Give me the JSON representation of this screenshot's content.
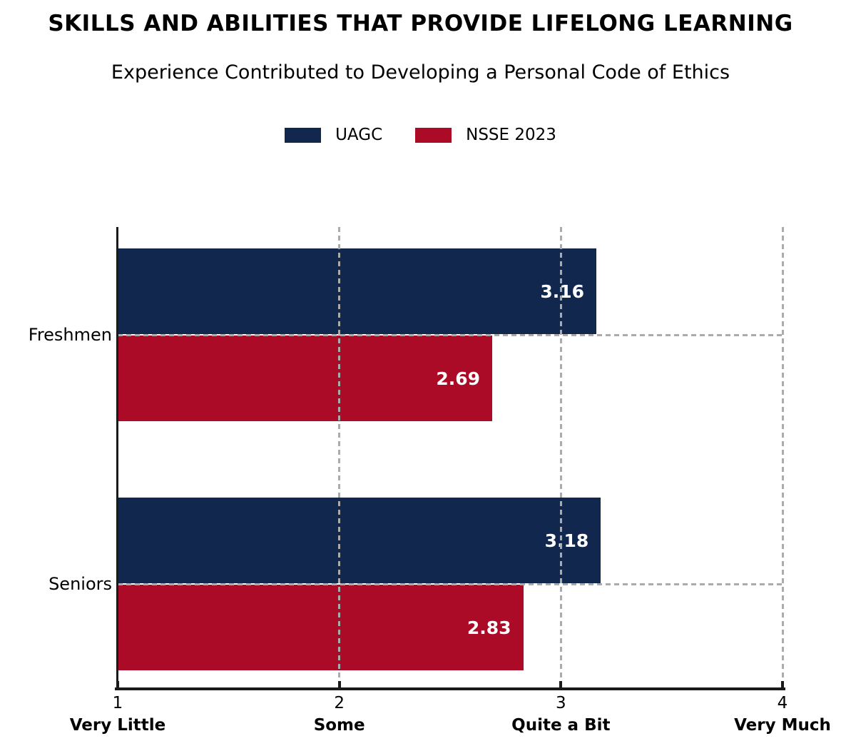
{
  "chart_data": {
    "type": "bar",
    "orientation": "horizontal",
    "title": "SKILLS AND ABILITIES THAT PROVIDE LIFELONG LEARNING",
    "subtitle": "Experience Contributed to Developing a Personal Code of Ethics",
    "categories": [
      "Freshmen",
      "Seniors"
    ],
    "series": [
      {
        "name": "UAGC",
        "color": "#12274E",
        "values": [
          3.16,
          3.18
        ],
        "value_labels": [
          "3.16",
          "3.18"
        ]
      },
      {
        "name": "NSSE 2023",
        "color": "#AB0B26",
        "values": [
          2.69,
          2.83
        ],
        "value_labels": [
          "2.69",
          "2.83"
        ]
      }
    ],
    "xlim": [
      1,
      4
    ],
    "x_ticks": [
      {
        "value": 1,
        "label": "1",
        "sublabel": "Very Little"
      },
      {
        "value": 2,
        "label": "2",
        "sublabel": "Some"
      },
      {
        "value": 3,
        "label": "3",
        "sublabel": "Quite a Bit"
      },
      {
        "value": 4,
        "label": "4",
        "sublabel": "Very Much"
      }
    ],
    "grid": {
      "show": true,
      "style": "dashed",
      "color": "#ABABAB",
      "vertical_at": [
        2,
        3,
        4
      ],
      "horizontal_at_categories": true
    },
    "axis_color": "#1A1A1A",
    "value_label_color": "#FFFFFF",
    "legend_position": "top-center"
  }
}
